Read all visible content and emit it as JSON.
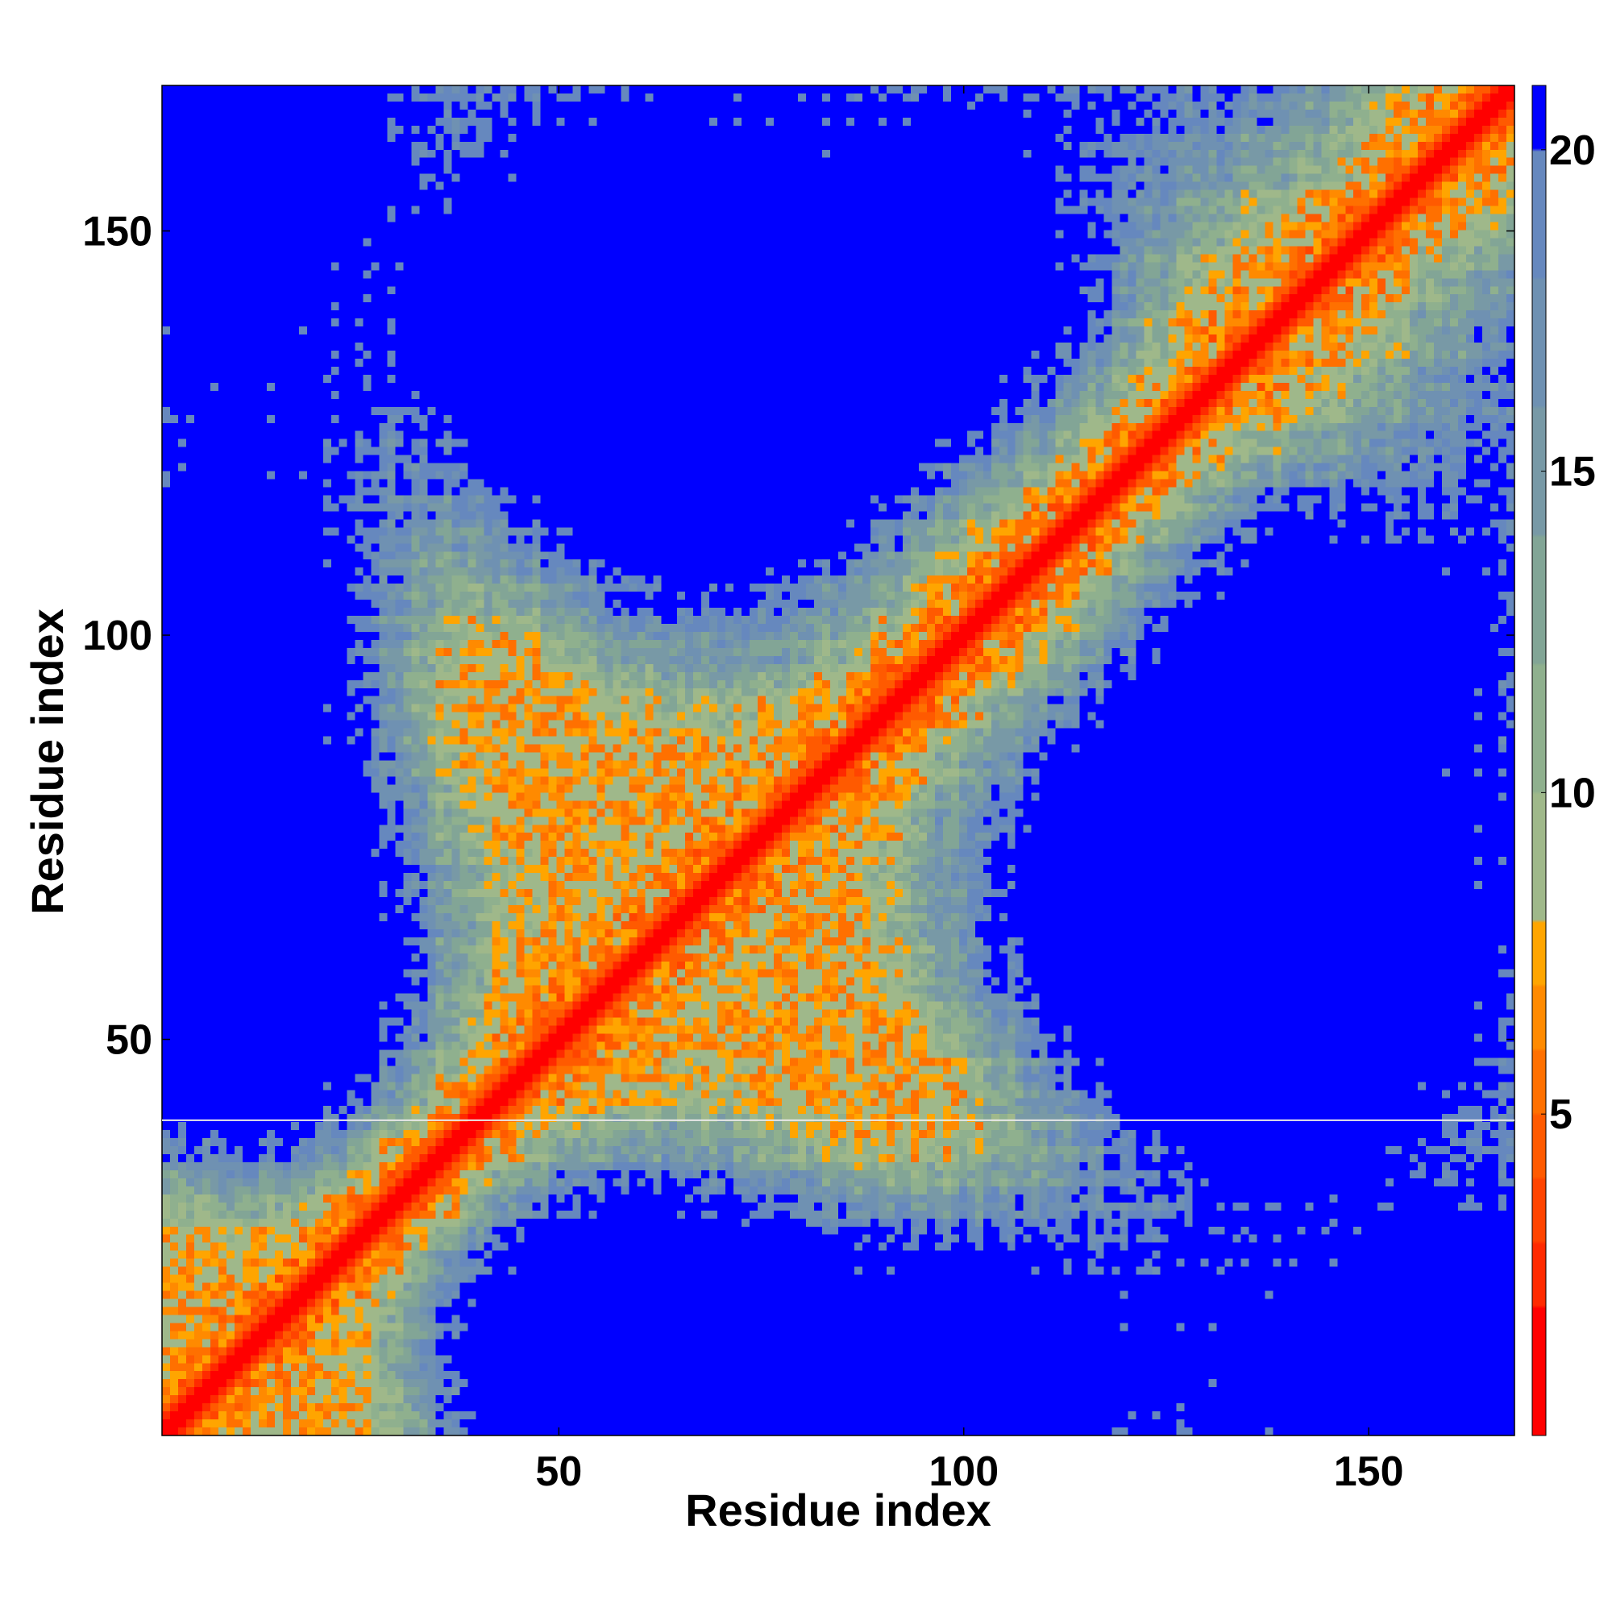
{
  "chart_data": {
    "type": "heatmap",
    "title": "",
    "xlabel": "Residue index",
    "ylabel": "Residue index",
    "xlim": [
      1,
      168
    ],
    "ylim": [
      1,
      168
    ],
    "x_ticks": [
      50,
      100,
      150
    ],
    "y_ticks": [
      50,
      100,
      150
    ],
    "x_tick_labels": [
      "50",
      "100",
      "150"
    ],
    "y_tick_labels": [
      "50",
      "100",
      "150"
    ],
    "n_residues": 168,
    "matrix": "symmetric residue–residue distance map",
    "colorbar": {
      "range": [
        0,
        21
      ],
      "ticks": [
        5,
        10,
        15,
        20
      ],
      "tick_labels": [
        "5",
        "10",
        "15",
        "20"
      ],
      "levels": [
        {
          "max": 2,
          "color": "#ff0000"
        },
        {
          "max": 3,
          "color": "#ff2a00"
        },
        {
          "max": 4,
          "color": "#ff4400"
        },
        {
          "max": 5,
          "color": "#ff5a00"
        },
        {
          "max": 6,
          "color": "#ff7000"
        },
        {
          "max": 7,
          "color": "#ff8a00"
        },
        {
          "max": 8,
          "color": "#ffa500"
        },
        {
          "max": 10,
          "color": "#9fb88a"
        },
        {
          "max": 12,
          "color": "#8fb08e"
        },
        {
          "max": 14,
          "color": "#82a596"
        },
        {
          "max": 16,
          "color": "#7899a6"
        },
        {
          "max": 18,
          "color": "#6f91b2"
        },
        {
          "max": 20,
          "color": "#6688be"
        },
        {
          "max": 21,
          "color": "#0000ff"
        }
      ]
    },
    "gap_line_at_residue": 40,
    "diagonal_color": "#ff0000",
    "background_color": "#0000ff"
  }
}
